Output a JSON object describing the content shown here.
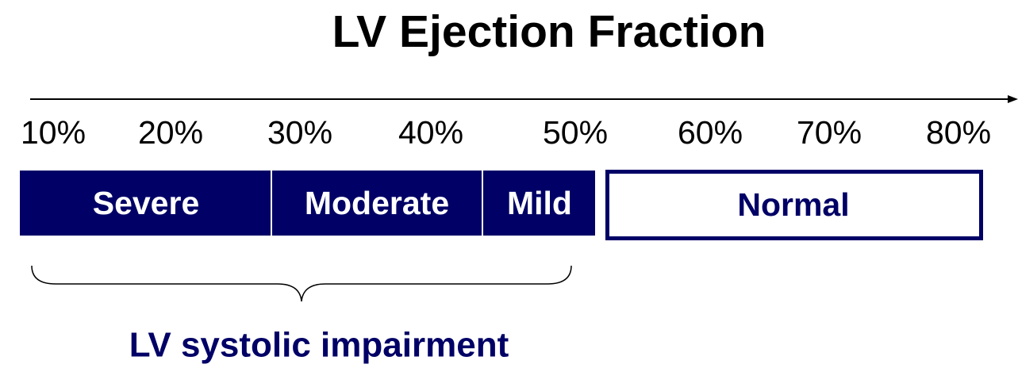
{
  "title": "LV Ejection Fraction",
  "axis": {
    "labels": [
      "10%",
      "20%",
      "30%",
      "40%",
      "50%",
      "60%",
      "70%",
      "80%"
    ]
  },
  "segments": [
    {
      "label": "Severe"
    },
    {
      "label": "Moderate"
    },
    {
      "label": "Mild"
    },
    {
      "label": "Normal"
    }
  ],
  "brace": {
    "label": "LV systolic impairment"
  }
}
